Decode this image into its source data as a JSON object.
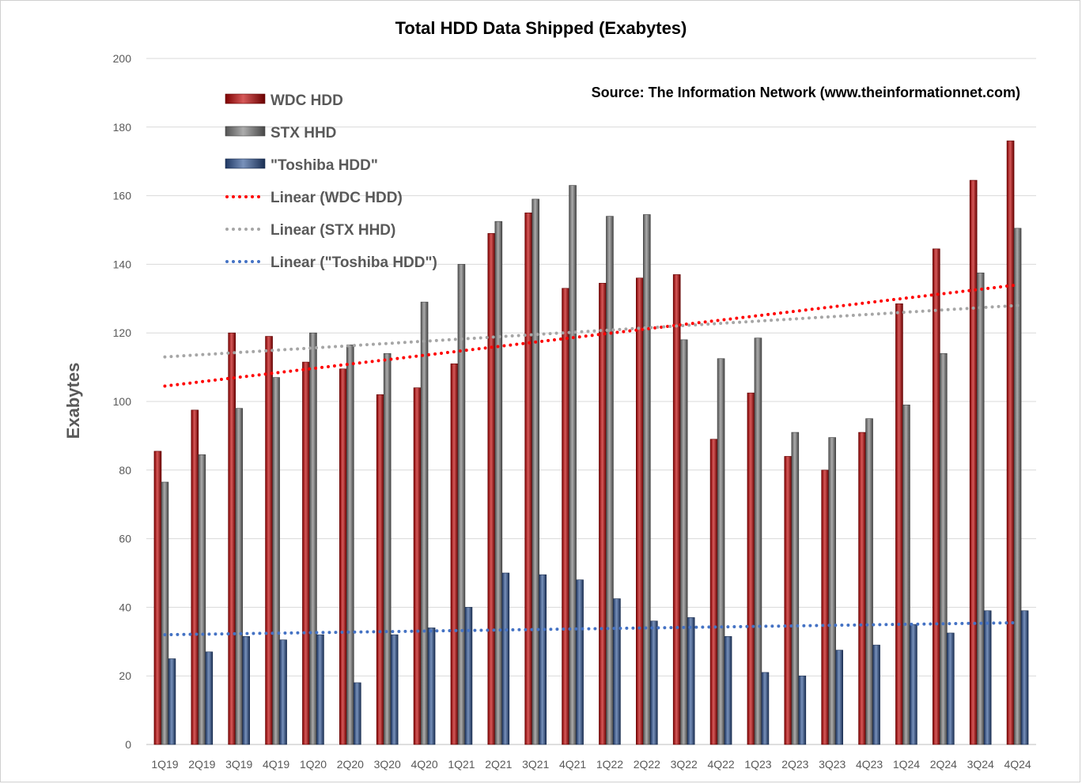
{
  "chart_data": {
    "type": "bar",
    "title": "Total HDD Data Shipped (Exabytes)",
    "source": "Source: The Information Network (www.theinformationnet.com)",
    "ylabel": "Exabytes",
    "xlabel": "",
    "ylim": [
      0,
      200
    ],
    "yticks": [
      0,
      20,
      40,
      60,
      80,
      100,
      120,
      140,
      160,
      180,
      200
    ],
    "grid": "horizontal",
    "legend_position": "top-left",
    "categories": [
      "1Q19",
      "2Q19",
      "3Q19",
      "4Q19",
      "1Q20",
      "2Q20",
      "3Q20",
      "4Q20",
      "1Q21",
      "2Q21",
      "3Q21",
      "4Q21",
      "1Q22",
      "2Q22",
      "3Q22",
      "4Q22",
      "1Q23",
      "2Q23",
      "3Q23",
      "4Q23",
      "1Q24",
      "2Q24",
      "3Q24",
      "4Q24"
    ],
    "series": [
      {
        "name": "WDC HDD",
        "color": "#c00000",
        "values": [
          85.5,
          97.5,
          120,
          119,
          111.5,
          109.5,
          102,
          104,
          111,
          149,
          155,
          133,
          134.5,
          136,
          137,
          89,
          102.5,
          84,
          80,
          91,
          128.5,
          144.5,
          164.5,
          176
        ]
      },
      {
        "name": "STX HHD",
        "color": "#808080",
        "values": [
          76.5,
          84.5,
          98,
          107,
          120,
          116.5,
          114,
          129,
          140,
          152.5,
          159,
          163,
          154,
          154.5,
          118,
          112.5,
          118.5,
          91,
          89.5,
          95,
          99,
          114,
          137.5,
          150.5
        ]
      },
      {
        "name": "\"Toshiba HDD\"",
        "color": "#2f5597",
        "values": [
          25,
          27,
          31.5,
          30.5,
          32,
          18,
          32,
          34,
          40,
          50,
          49.5,
          48,
          42.5,
          36,
          37,
          31.5,
          21,
          20,
          27.5,
          29,
          35,
          32.5,
          39,
          39
        ]
      }
    ],
    "trendlines": [
      {
        "name": "Linear (WDC HDD)",
        "color": "#ff0000",
        "start": 104.5,
        "end": 134
      },
      {
        "name": "Linear (STX HHD)",
        "color": "#a6a6a6",
        "start": 113,
        "end": 128
      },
      {
        "name": "Linear (\"Toshiba HDD\")",
        "color": "#4472c4",
        "start": 32,
        "end": 35.5
      }
    ]
  }
}
